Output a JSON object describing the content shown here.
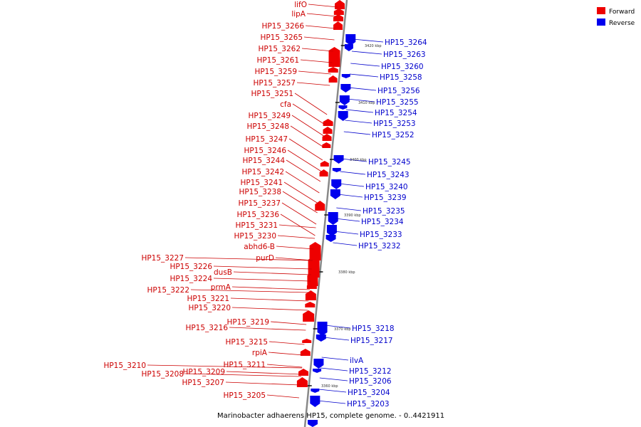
{
  "caption": "Marinobacter adhaerens HP15, complete genome. - 0..4421911",
  "legend": {
    "forward_label": "Forward",
    "reverse_label": "Reverse",
    "forward_color": "#ee0000",
    "reverse_color": "#0000ee"
  },
  "colors": {
    "forward_text": "#cc0000",
    "reverse_text": "#0000cc",
    "backbone": "#888888"
  },
  "ticks": [
    "3420 kbp",
    "3410 kbp",
    "3400 kbp",
    "3390 kbp",
    "3380 kbp",
    "3370 kbp",
    "3360 kbp"
  ],
  "forward_genes": [
    "lifO",
    "lipA",
    "HP15_3266",
    "HP15_3265",
    "HP15_3262",
    "HP15_3261",
    "HP15_3259",
    "HP15_3257",
    "HP15_3251",
    "cfa",
    "HP15_3249",
    "HP15_3248",
    "HP15_3247",
    "HP15_3246",
    "HP15_3244",
    "HP15_3242",
    "HP15_3241",
    "HP15_3238",
    "HP15_3237",
    "HP15_3236",
    "HP15_3231",
    "HP15_3230",
    "abhd6-B",
    "purD",
    "HP15_3227",
    "HP15_3226",
    "dusB",
    "HP15_3224",
    "prmA",
    "HP15_3222",
    "HP15_3221",
    "HP15_3220",
    "HP15_3219",
    "HP15_3216",
    "HP15_3215",
    "rpiA",
    "HP15_3211",
    "HP15_3210",
    "HP15_3209",
    "HP15_3208",
    "HP15_3207",
    "HP15_3205"
  ],
  "reverse_genes": [
    "HP15_3264",
    "HP15_3263",
    "HP15_3260",
    "HP15_3258",
    "HP15_3256",
    "HP15_3255",
    "HP15_3254",
    "HP15_3253",
    "HP15_3252",
    "HP15_3245",
    "HP15_3243",
    "HP15_3240",
    "HP15_3239",
    "HP15_3235",
    "HP15_3234",
    "HP15_3233",
    "HP15_3232",
    "HP15_3218",
    "HP15_3217",
    "ilvA",
    "HP15_3212",
    "HP15_3206",
    "HP15_3204",
    "HP15_3203"
  ]
}
